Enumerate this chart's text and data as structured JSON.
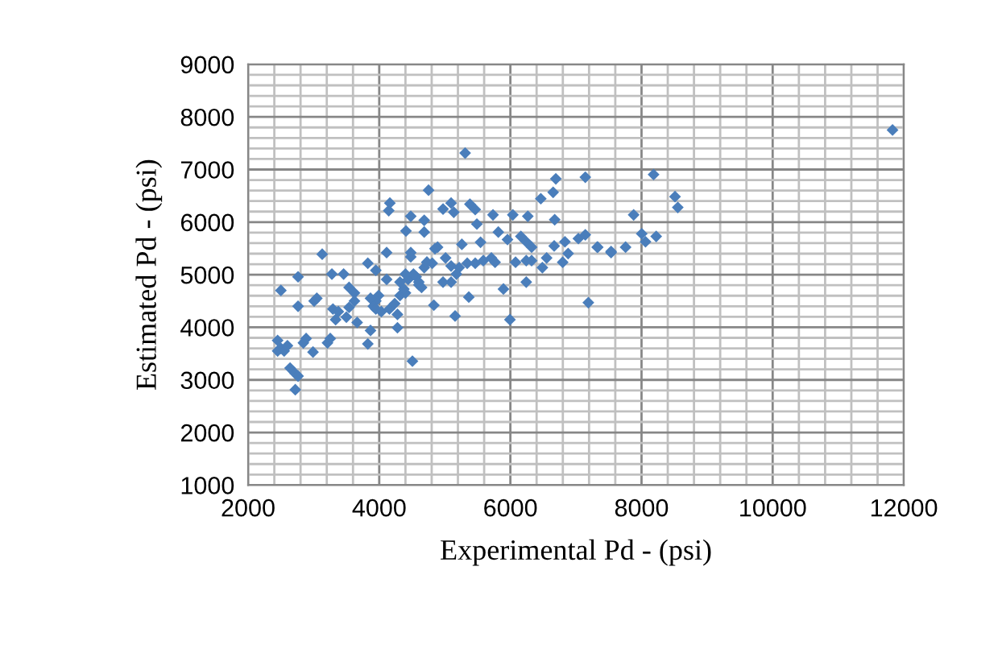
{
  "chart_data": {
    "type": "scatter",
    "xlabel": "Experimental Pd - (psi)",
    "ylabel": "Estimated Pd - (psi)",
    "xlim": [
      2000,
      12000
    ],
    "xticks": [
      2000,
      4000,
      6000,
      8000,
      10000,
      12000
    ],
    "ylim": [
      1000,
      9000
    ],
    "yticks": [
      1000,
      2000,
      3000,
      4000,
      5000,
      6000,
      7000,
      8000,
      9000
    ],
    "grid": true,
    "marker": "diamond",
    "series": [
      {
        "color": "#4a7ebb",
        "x": [
          5310,
          7143,
          6693,
          6652,
          6464,
          4752,
          4162,
          4145,
          5096,
          4973,
          5137,
          5383,
          5464,
          4481,
          4686,
          4408,
          4686,
          5489,
          5735,
          6037,
          6266,
          6676,
          5816,
          5545,
          5956,
          6160,
          6242,
          6324,
          6668,
          6832,
          7037,
          7143,
          7324,
          7536,
          6881,
          6553,
          6798,
          6488,
          5260,
          4890,
          4850,
          4481,
          4481,
          4113,
          3826,
          3130,
          3278,
          3457,
          3948,
          4727,
          4808,
          5012,
          5096,
          5219,
          5342,
          5464,
          5587,
          5710,
          5767,
          6079,
          6242,
          6324,
          2762,
          2762,
          3007,
          3048,
          3294,
          3376,
          3540,
          3622,
          3499,
          3335,
          3622,
          3540,
          4113,
          3990,
          3948,
          3909,
          3867,
          3948,
          4032,
          4155,
          4236,
          4317,
          4400,
          4440,
          4563,
          4604,
          4646,
          3663,
          3867,
          3826,
          4278,
          4278,
          3211,
          3253,
          2885,
          2843,
          2990,
          2640,
          2720,
          2762,
          2720,
          4506,
          4833,
          5157,
          5366,
          5894,
          5993,
          6242,
          7189,
          5096,
          5177,
          4973,
          4686,
          4727,
          4522,
          4400,
          4317,
          4376,
          4604,
          2450,
          2500,
          2450,
          2550,
          2600,
          2500,
          11828,
          8184,
          8511,
          8553,
          7880,
          8003,
          8061,
          8224,
          7757,
          7536,
          7332
        ],
        "values": [
          7313,
          6853,
          6822,
          6567,
          6445,
          6607,
          6362,
          6218,
          6362,
          6248,
          6187,
          6341,
          6239,
          6110,
          6034,
          5831,
          5810,
          5963,
          6138,
          6138,
          6110,
          6046,
          5810,
          5617,
          5668,
          5728,
          5626,
          5524,
          5546,
          5626,
          5687,
          5758,
          5524,
          5420,
          5402,
          5319,
          5237,
          5135,
          5577,
          5524,
          5494,
          5420,
          5340,
          5420,
          5218,
          5389,
          5012,
          5012,
          5083,
          5237,
          5218,
          5319,
          5166,
          5135,
          5218,
          5218,
          5267,
          5319,
          5237,
          5237,
          5267,
          5267,
          4960,
          4399,
          4500,
          4552,
          4347,
          4298,
          4378,
          4500,
          4193,
          4145,
          4653,
          4758,
          4911,
          4604,
          4500,
          4399,
          4552,
          4347,
          4298,
          4347,
          4451,
          4604,
          4653,
          4911,
          4960,
          4807,
          4758,
          4092,
          3939,
          3684,
          3991,
          4245,
          3703,
          3785,
          3785,
          3703,
          3530,
          3224,
          3120,
          3071,
          2813,
          3356,
          4420,
          4215,
          4574,
          4727,
          4145,
          4859,
          4469,
          4859,
          5012,
          4859,
          5135,
          5237,
          5012,
          5012,
          4859,
          4727,
          4859,
          3750,
          3600,
          3550,
          3550,
          3650,
          4700,
          7752,
          6904,
          6485,
          6279,
          6138,
          5779,
          5626,
          5728,
          5524,
          5442,
          5524
        ]
      }
    ]
  }
}
